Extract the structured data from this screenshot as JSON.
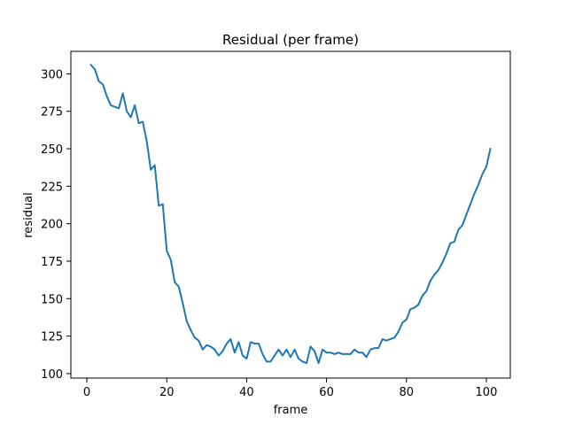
{
  "chart_data": {
    "type": "line",
    "title": "Residual (per frame)",
    "xlabel": "frame",
    "ylabel": "residual",
    "xlim": [
      -4,
      106
    ],
    "ylim": [
      97,
      315
    ],
    "xticks": [
      0,
      20,
      40,
      60,
      80,
      100
    ],
    "yticks": [
      100,
      125,
      150,
      175,
      200,
      225,
      250,
      275,
      300
    ],
    "grid": false,
    "line_color": "#1f77b4",
    "series": [
      {
        "x": [
          1,
          2,
          3,
          4,
          5,
          6,
          7,
          8,
          9,
          10,
          11,
          12,
          13,
          14,
          15,
          16,
          17,
          18,
          19,
          20,
          21,
          22,
          23,
          24,
          25,
          26,
          27,
          28,
          29,
          30,
          31,
          32,
          33,
          34,
          35,
          36,
          37,
          38,
          39,
          40,
          41,
          42,
          43,
          44,
          45,
          46,
          47,
          48,
          49,
          50,
          51,
          52,
          53,
          54,
          55,
          56,
          57,
          58,
          59,
          60,
          61,
          62,
          63,
          64,
          65,
          66,
          67,
          68,
          69,
          70,
          71,
          72,
          73,
          74,
          75,
          76,
          77,
          78,
          79,
          80,
          81,
          82,
          83,
          84,
          85,
          86,
          87,
          88,
          89,
          90,
          91,
          92,
          93,
          94,
          95,
          96,
          97,
          98,
          99,
          100,
          101
        ],
        "y": [
          306,
          303,
          295,
          293,
          285,
          279,
          278,
          277,
          287,
          275,
          271,
          279,
          267,
          268,
          255,
          236,
          239,
          212,
          213,
          182,
          176,
          161,
          158,
          147,
          135,
          129,
          124,
          122,
          116,
          119,
          118,
          116,
          112,
          115,
          120,
          123,
          114,
          121,
          112,
          110,
          121,
          120,
          120,
          113,
          108,
          108,
          112,
          116,
          112,
          116,
          111,
          116,
          110,
          108,
          107,
          118,
          115,
          107,
          116,
          114,
          114,
          113,
          114,
          113,
          113,
          113,
          116,
          114,
          114,
          111,
          116,
          117,
          117,
          123,
          122,
          123,
          124,
          128,
          134,
          136,
          143,
          144,
          146,
          152,
          155,
          162,
          166,
          169,
          174,
          180,
          187,
          188,
          196,
          199,
          206,
          213,
          220,
          226,
          233,
          238,
          250
        ]
      }
    ]
  }
}
